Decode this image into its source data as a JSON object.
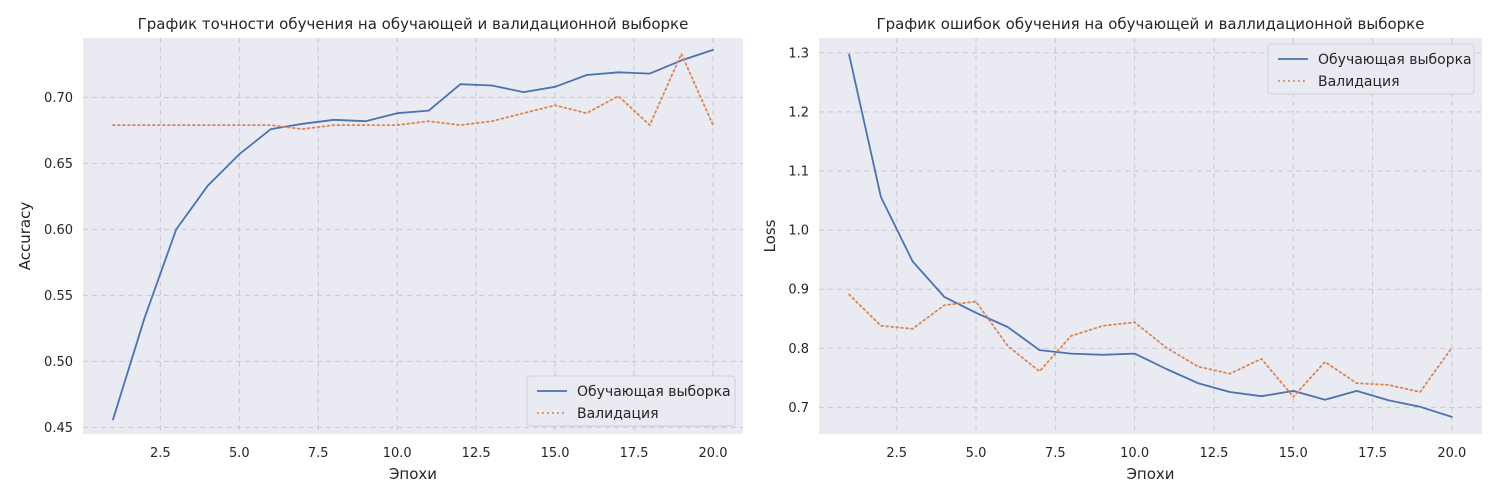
{
  "chart_data": [
    {
      "type": "line",
      "title": "График точности обучения на обучающей и валидационной выборке",
      "xlabel": "Эпохи",
      "ylabel": "Accuracy",
      "xlim": [
        0.05,
        20.95
      ],
      "ylim": [
        0.445,
        0.745
      ],
      "xticks": [
        "2.5",
        "5.0",
        "7.5",
        "10.0",
        "12.5",
        "15.0",
        "17.5",
        "20.0"
      ],
      "xtick_values": [
        2.5,
        5.0,
        7.5,
        10.0,
        12.5,
        15.0,
        17.5,
        20.0
      ],
      "yticks": [
        "0.45",
        "0.50",
        "0.55",
        "0.60",
        "0.65",
        "0.70"
      ],
      "ytick_values": [
        0.45,
        0.5,
        0.55,
        0.6,
        0.65,
        0.7
      ],
      "grid": true,
      "legend_position": "bottom-right",
      "x": [
        1,
        2,
        3,
        4,
        5,
        6,
        7,
        8,
        9,
        10,
        11,
        12,
        13,
        14,
        15,
        16,
        17,
        18,
        19,
        20
      ],
      "series": [
        {
          "name": "Обучающая выборка",
          "color": "#4c72b0",
          "style": "solid",
          "values": [
            0.456,
            0.533,
            0.6,
            0.633,
            0.657,
            0.676,
            0.68,
            0.683,
            0.682,
            0.688,
            0.69,
            0.71,
            0.709,
            0.704,
            0.708,
            0.717,
            0.719,
            0.718,
            0.728,
            0.736
          ]
        },
        {
          "name": "Валидация",
          "color": "#dd8452",
          "style": "dotted",
          "values": [
            0.679,
            0.679,
            0.679,
            0.679,
            0.679,
            0.679,
            0.676,
            0.679,
            0.679,
            0.679,
            0.682,
            0.679,
            0.682,
            0.688,
            0.694,
            0.688,
            0.701,
            0.679,
            0.733,
            0.679
          ]
        }
      ]
    },
    {
      "type": "line",
      "title": "График ошибок обучения на обучающей и валлидационной выборке",
      "xlabel": "Эпохи",
      "ylabel": "Loss",
      "xlim": [
        0.05,
        20.95
      ],
      "ylim": [
        0.655,
        1.325
      ],
      "xticks": [
        "2.5",
        "5.0",
        "7.5",
        "10.0",
        "12.5",
        "15.0",
        "17.5",
        "20.0"
      ],
      "xtick_values": [
        2.5,
        5.0,
        7.5,
        10.0,
        12.5,
        15.0,
        17.5,
        20.0
      ],
      "yticks": [
        "0.7",
        "0.8",
        "0.9",
        "1.0",
        "1.1",
        "1.2",
        "1.3"
      ],
      "ytick_values": [
        0.7,
        0.8,
        0.9,
        1.0,
        1.1,
        1.2,
        1.3
      ],
      "grid": true,
      "legend_position": "top-right",
      "x": [
        1,
        2,
        3,
        4,
        5,
        6,
        7,
        8,
        9,
        10,
        11,
        12,
        13,
        14,
        15,
        16,
        17,
        18,
        19,
        20
      ],
      "series": [
        {
          "name": "Обучающая выборка",
          "color": "#4c72b0",
          "style": "solid",
          "values": [
            1.297,
            1.056,
            0.947,
            0.887,
            0.86,
            0.836,
            0.797,
            0.791,
            0.789,
            0.791,
            0.765,
            0.741,
            0.726,
            0.719,
            0.728,
            0.713,
            0.728,
            0.712,
            0.701,
            0.684
          ]
        },
        {
          "name": "Валидация",
          "color": "#dd8452",
          "style": "dotted",
          "values": [
            0.891,
            0.838,
            0.833,
            0.873,
            0.879,
            0.804,
            0.761,
            0.821,
            0.838,
            0.844,
            0.801,
            0.769,
            0.757,
            0.782,
            0.718,
            0.777,
            0.741,
            0.738,
            0.726,
            0.801
          ]
        }
      ]
    }
  ]
}
